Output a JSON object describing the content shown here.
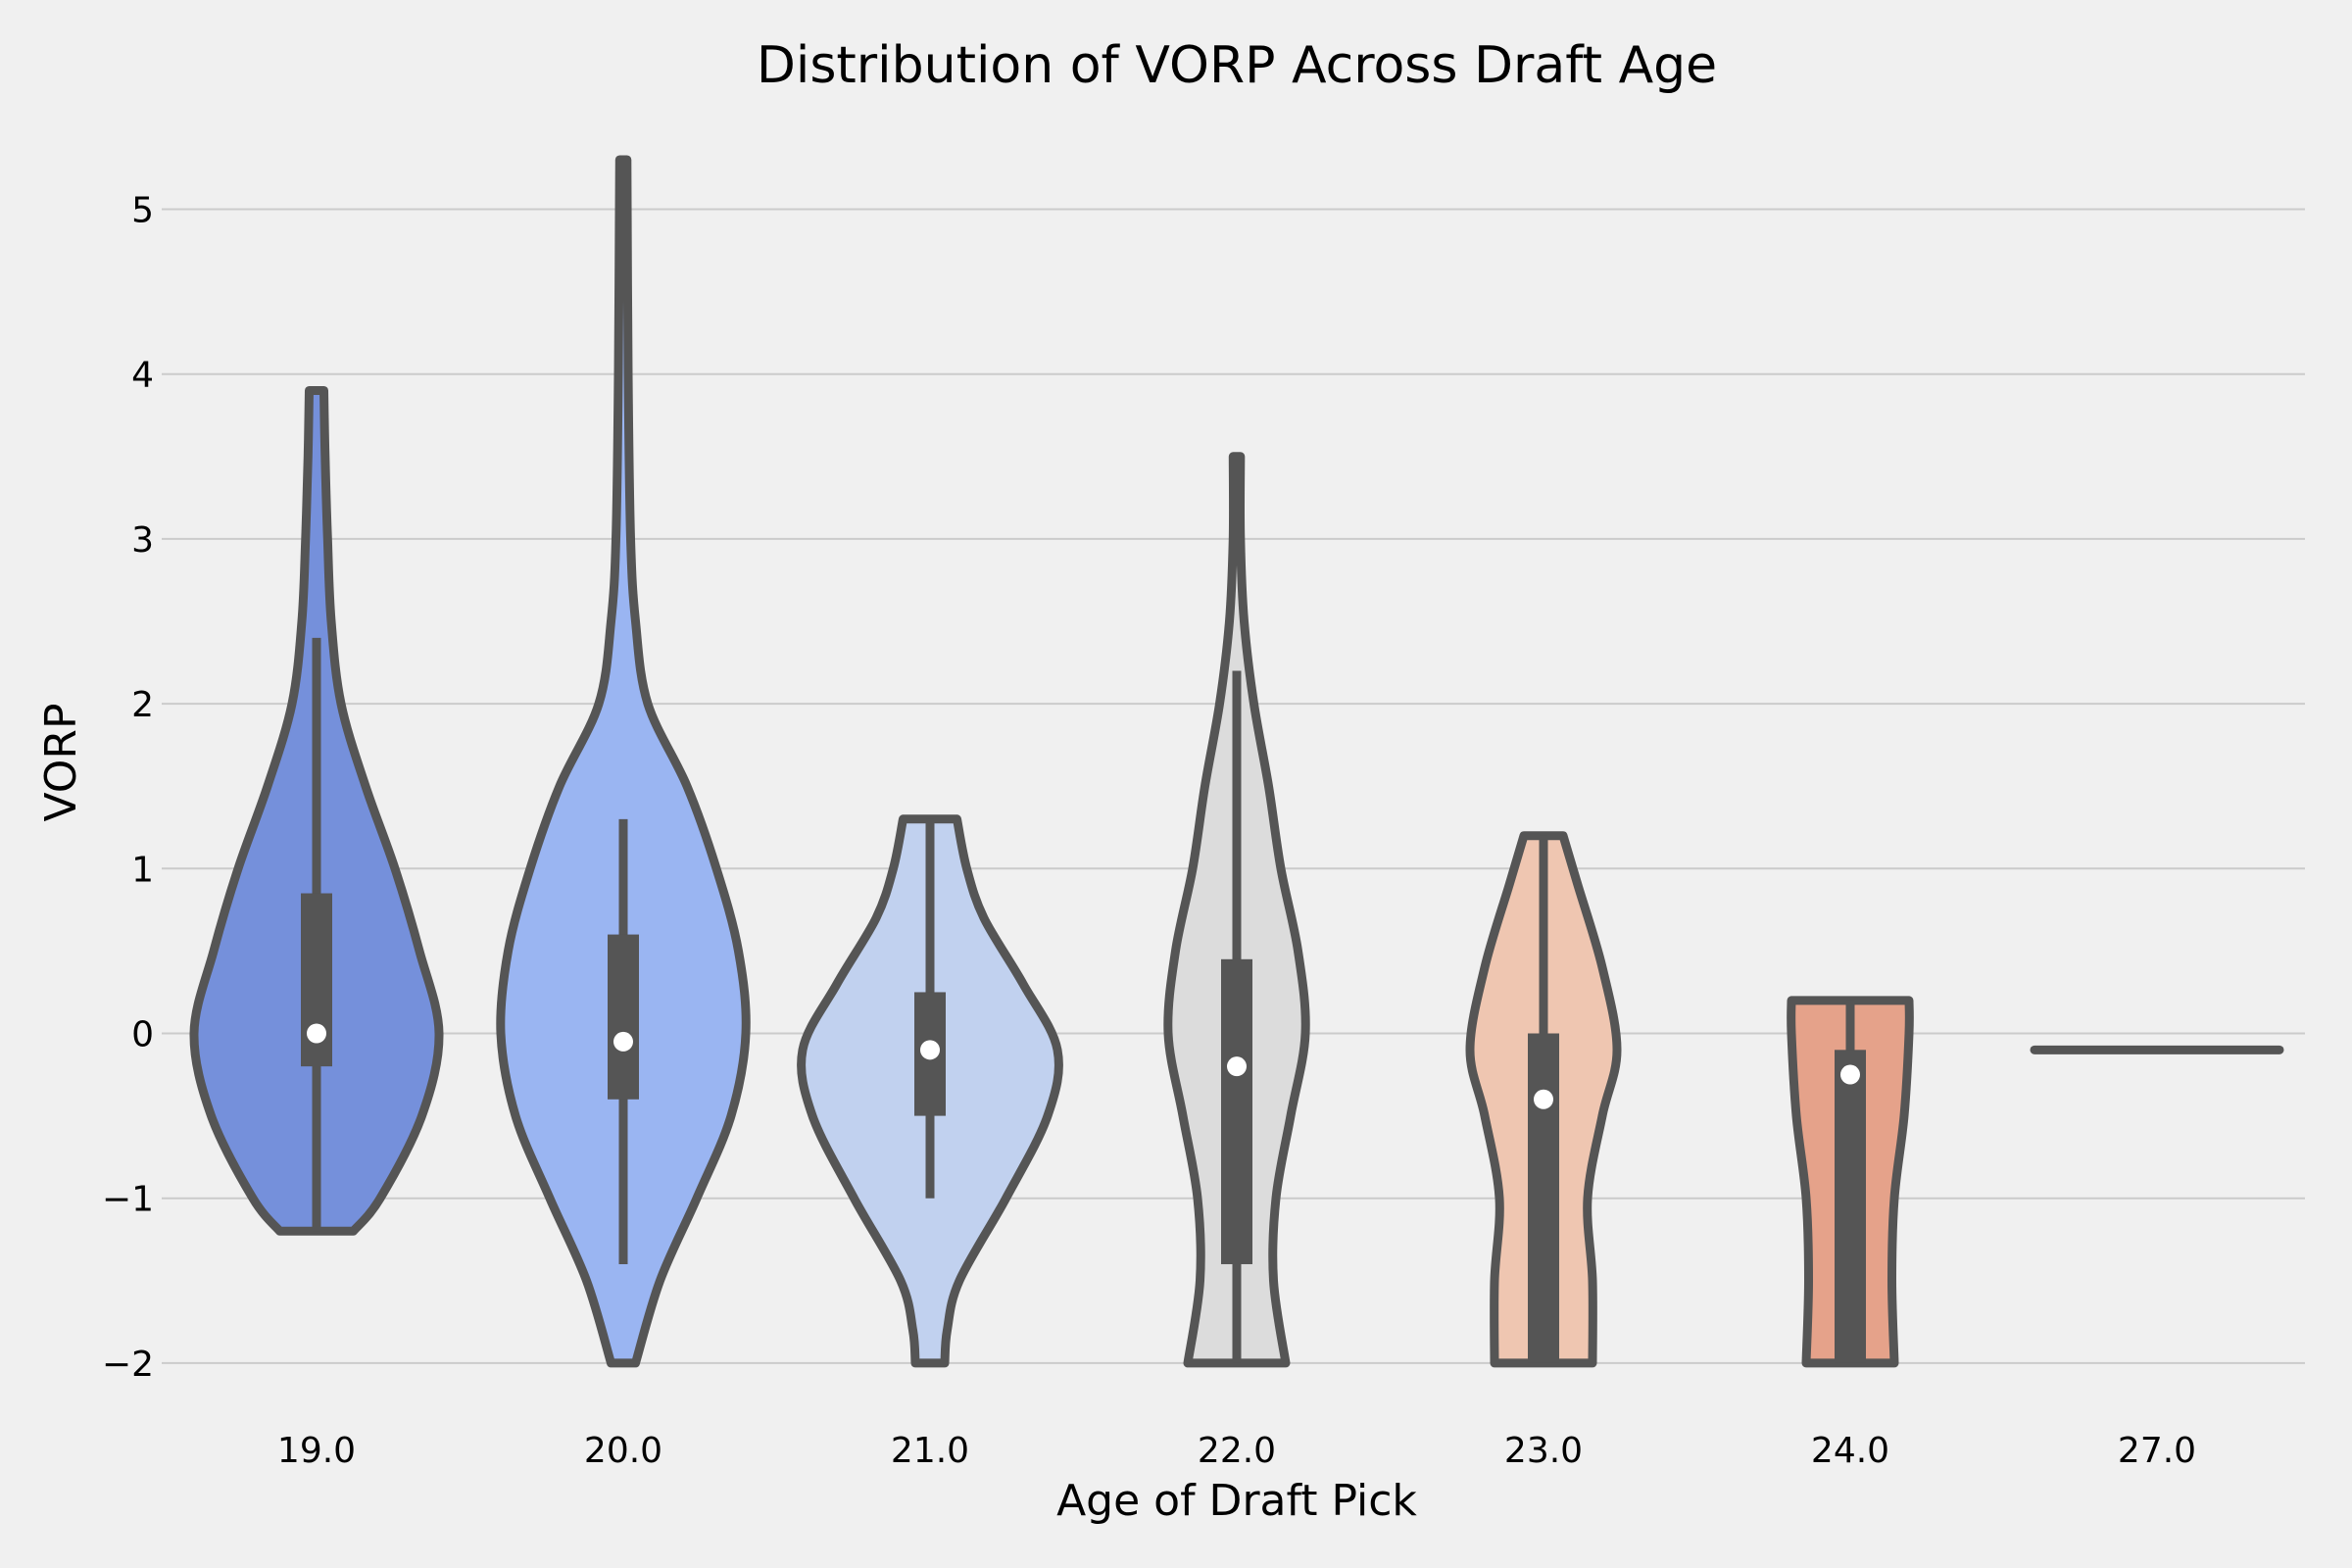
{
  "chart_data": {
    "type": "violin",
    "title": "Distribution of VORP Across Draft Age",
    "xlabel": "Age of Draft Pick",
    "ylabel": "VORP",
    "ylim": [
      -2.3,
      5.6
    ],
    "yticks": [
      -2,
      -1,
      0,
      1,
      2,
      3,
      4,
      5
    ],
    "ytick_labels": [
      "−2",
      "−1",
      "0",
      "1",
      "2",
      "3",
      "4",
      "5"
    ],
    "grid": "horizontal",
    "categories": [
      "19.0",
      "20.0",
      "21.0",
      "22.0",
      "23.0",
      "24.0",
      "27.0"
    ],
    "violins": [
      {
        "category": "19.0",
        "color": "#7590db",
        "min": -1.2,
        "max": 3.9,
        "q1": -0.2,
        "median": 0.0,
        "q3": 0.85,
        "whisker_low": -1.2,
        "whisker_high": 2.4,
        "profile": [
          [
            -1.2,
            0.15
          ],
          [
            -1.0,
            0.26
          ],
          [
            -0.5,
            0.43
          ],
          [
            0.0,
            0.5
          ],
          [
            0.5,
            0.42
          ],
          [
            1.0,
            0.32
          ],
          [
            1.5,
            0.2
          ],
          [
            2.0,
            0.1
          ],
          [
            2.5,
            0.06
          ],
          [
            3.0,
            0.045
          ],
          [
            3.5,
            0.035
          ],
          [
            3.9,
            0.03
          ]
        ]
      },
      {
        "category": "20.0",
        "color": "#9ab5f2",
        "min": -2.0,
        "max": 5.3,
        "q1": -0.4,
        "median": -0.05,
        "q3": 0.6,
        "whisker_low": -1.4,
        "whisker_high": 1.3,
        "profile": [
          [
            -2.0,
            0.05
          ],
          [
            -1.5,
            0.15
          ],
          [
            -1.0,
            0.3
          ],
          [
            -0.5,
            0.44
          ],
          [
            0.0,
            0.5
          ],
          [
            0.5,
            0.47
          ],
          [
            1.0,
            0.38
          ],
          [
            1.5,
            0.26
          ],
          [
            2.0,
            0.1
          ],
          [
            2.5,
            0.05
          ],
          [
            3.0,
            0.03
          ],
          [
            4.0,
            0.02
          ],
          [
            5.3,
            0.015
          ]
        ]
      },
      {
        "category": "21.0",
        "color": "#c1d1ef",
        "min": -2.0,
        "max": 1.3,
        "q1": -0.5,
        "median": -0.1,
        "q3": 0.25,
        "whisker_low": -1.0,
        "whisker_high": 1.3,
        "profile": [
          [
            -2.0,
            0.06
          ],
          [
            -1.8,
            0.07
          ],
          [
            -1.5,
            0.12
          ],
          [
            -1.0,
            0.31
          ],
          [
            -0.5,
            0.48
          ],
          [
            -0.1,
            0.52
          ],
          [
            0.3,
            0.38
          ],
          [
            0.7,
            0.22
          ],
          [
            1.0,
            0.15
          ],
          [
            1.3,
            0.11
          ]
        ]
      },
      {
        "category": "22.0",
        "color": "#dcdcdc",
        "min": -2.0,
        "max": 3.5,
        "q1": -1.4,
        "median": -0.2,
        "q3": 0.45,
        "whisker_low": -2.0,
        "whisker_high": 2.2,
        "profile": [
          [
            -2.0,
            0.2
          ],
          [
            -1.5,
            0.15
          ],
          [
            -1.0,
            0.16
          ],
          [
            -0.5,
            0.22
          ],
          [
            0.0,
            0.28
          ],
          [
            0.5,
            0.25
          ],
          [
            1.0,
            0.18
          ],
          [
            1.5,
            0.13
          ],
          [
            2.0,
            0.07
          ],
          [
            2.5,
            0.03
          ],
          [
            3.0,
            0.015
          ],
          [
            3.5,
            0.015
          ]
        ]
      },
      {
        "category": "23.0",
        "color": "#efc6b1",
        "min": -2.0,
        "max": 1.2,
        "q1": -2.0,
        "median": -0.4,
        "q3": 0.0,
        "whisker_low": -2.0,
        "whisker_high": 1.2,
        "profile": [
          [
            -2.0,
            0.2
          ],
          [
            -1.5,
            0.2
          ],
          [
            -1.0,
            0.18
          ],
          [
            -0.5,
            0.24
          ],
          [
            -0.1,
            0.3
          ],
          [
            0.4,
            0.24
          ],
          [
            0.9,
            0.14
          ],
          [
            1.2,
            0.08
          ]
        ]
      },
      {
        "category": "24.0",
        "color": "#e5a28a",
        "min": -2.0,
        "max": 0.2,
        "q1": -2.0,
        "median": -0.25,
        "q3": -0.1,
        "whisker_low": -2.0,
        "whisker_high": 0.2,
        "profile": [
          [
            -2.0,
            0.18
          ],
          [
            -1.5,
            0.17
          ],
          [
            -1.0,
            0.18
          ],
          [
            -0.5,
            0.22
          ],
          [
            0.0,
            0.24
          ],
          [
            0.2,
            0.24
          ]
        ]
      },
      {
        "category": "27.0",
        "color": "#e0816a",
        "value": -0.1,
        "single_value": true
      }
    ]
  }
}
